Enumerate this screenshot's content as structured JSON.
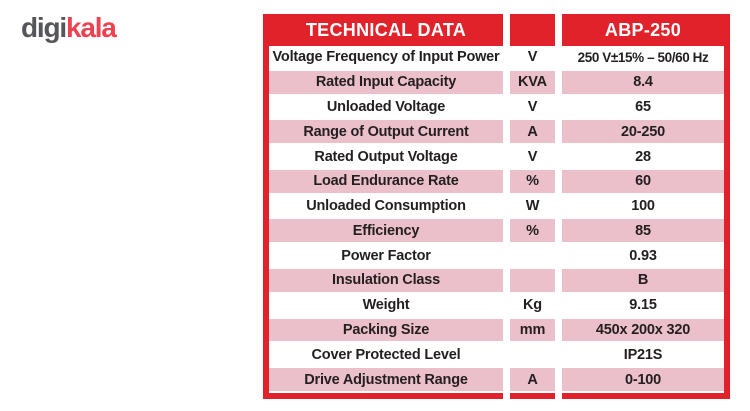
{
  "logo": {
    "gray_part": "digi",
    "red_part": "kala"
  },
  "table": {
    "header": {
      "title": "TECHNICAL DATA",
      "unit_header": "",
      "model": "ABP-250"
    },
    "rows": [
      {
        "name": "Voltage Frequency of Input Power",
        "unit": "V",
        "value": "250 V±15% – 50/60 Hz"
      },
      {
        "name": "Rated Input Capacity",
        "unit": "KVA",
        "value": "8.4"
      },
      {
        "name": "Unloaded Voltage",
        "unit": "V",
        "value": "65"
      },
      {
        "name": "Range of Output Current",
        "unit": "A",
        "value": "20-250"
      },
      {
        "name": "Rated Output Voltage",
        "unit": "V",
        "value": "28"
      },
      {
        "name": "Load Endurance Rate",
        "unit": "%",
        "value": "60"
      },
      {
        "name": "Unloaded Consumption",
        "unit": "W",
        "value": "100"
      },
      {
        "name": "Efficiency",
        "unit": "%",
        "value": "85"
      },
      {
        "name": "Power Factor",
        "unit": "",
        "value": "0.93"
      },
      {
        "name": "Insulation Class",
        "unit": "",
        "value": "B"
      },
      {
        "name": "Weight",
        "unit": "Kg",
        "value": "9.15"
      },
      {
        "name": "Packing Size",
        "unit": "mm",
        "value": "450x 200x 320"
      },
      {
        "name": "Cover Protected Level",
        "unit": "",
        "value": "IP21S"
      },
      {
        "name": "Drive Adjustment Range",
        "unit": "A",
        "value": "0-100"
      }
    ]
  },
  "colors": {
    "red": "#e1222a",
    "pink": "#ecc0ca",
    "text": "#231f20",
    "logo_gray": "#55565a",
    "logo_red": "#ef4150"
  }
}
